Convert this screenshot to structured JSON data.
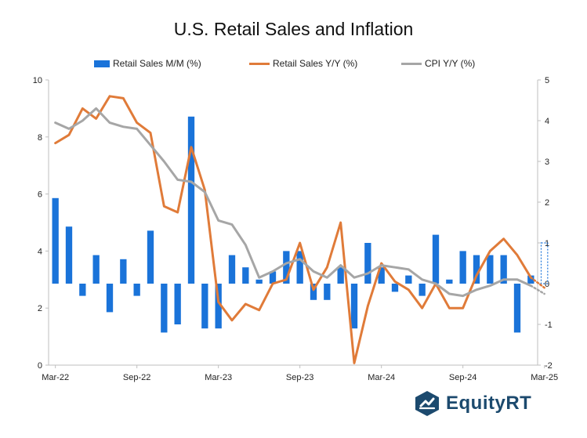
{
  "chart_data": {
    "type": "bar+line",
    "title": "U.S. Retail Sales and Inflation",
    "x_ticks": [
      "Mar-22",
      "Sep-22",
      "Mar-23",
      "Sep-23",
      "Mar-24",
      "Sep-24",
      "Mar-25"
    ],
    "y_left": {
      "min": 0,
      "max": 10,
      "ticks": [
        "0",
        "2",
        "4",
        "6",
        "8",
        "10"
      ]
    },
    "y_right": {
      "min": -2,
      "max": 5,
      "ticks": [
        "-2",
        "-1",
        "0",
        "1",
        "2",
        "3",
        "4",
        "5"
      ]
    },
    "legend_position": "top",
    "series": [
      {
        "name": "Retail Sales M/M (%)",
        "kind": "bar",
        "axis": "right",
        "color": "#1a73d9",
        "values": [
          2.1,
          1.4,
          -0.3,
          0.7,
          -0.7,
          0.6,
          -0.3,
          1.3,
          -1.2,
          -1.0,
          4.1,
          -1.1,
          -1.1,
          0.7,
          0.4,
          0.1,
          0.3,
          0.8,
          0.8,
          -0.4,
          -0.4,
          0.4,
          -1.1,
          1.0,
          0.4,
          -0.2,
          0.2,
          -0.3,
          1.2,
          0.1,
          0.8,
          0.7,
          0.7,
          0.7,
          -1.2,
          0.2
        ],
        "projected": 1.0
      },
      {
        "name": "Retail Sales Y/Y (%)",
        "kind": "line",
        "axis": "right",
        "color": "#e07b39",
        "values": [
          3.45,
          3.65,
          4.3,
          4.05,
          4.6,
          4.55,
          3.95,
          3.7,
          1.9,
          1.75,
          3.35,
          2.3,
          -0.45,
          -0.9,
          -0.5,
          -0.65,
          0.0,
          0.1,
          1.0,
          -0.15,
          0.4,
          1.5,
          -1.95,
          -0.55,
          0.5,
          0.05,
          -0.15,
          -0.6,
          0.0,
          -0.6,
          -0.6,
          0.2,
          0.8,
          1.1,
          0.7,
          0.15
        ],
        "projected": -0.1
      },
      {
        "name": "CPI  Y/Y (%)",
        "kind": "line",
        "axis": "right",
        "color": "#a6a6a6",
        "values": [
          3.95,
          3.8,
          4.0,
          4.3,
          3.95,
          3.85,
          3.8,
          3.4,
          3.0,
          2.55,
          2.5,
          2.25,
          1.55,
          1.45,
          0.95,
          0.15,
          0.3,
          0.5,
          0.6,
          0.3,
          0.15,
          0.45,
          0.15,
          0.25,
          0.45,
          0.4,
          0.35,
          0.1,
          0.0,
          -0.25,
          -0.3,
          -0.15,
          -0.05,
          0.1,
          0.1,
          -0.05
        ],
        "projected": -0.25
      }
    ]
  },
  "legend": {
    "bar_label": "Retail Sales M/M (%)",
    "line1_label": "Retail Sales Y/Y (%)",
    "line2_label": "CPI  Y/Y (%)"
  },
  "logo": {
    "text": "EquityRT"
  }
}
